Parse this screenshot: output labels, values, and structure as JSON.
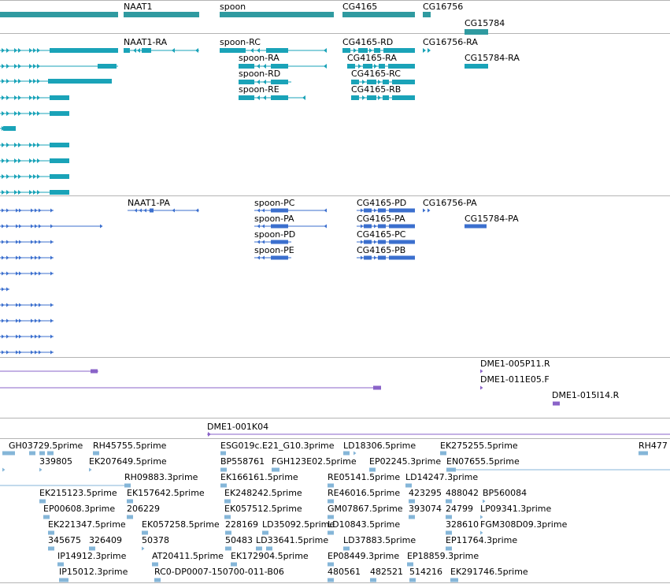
{
  "colors": {
    "gene": "#2f9aa0",
    "transcript": "#1aa3b8",
    "protein": "#3b6fce",
    "clone": "#8a63c8",
    "cdna": "#85b6d8",
    "separator": "#b4b4b4"
  },
  "genes": [
    "NAAT1",
    "spoon",
    "CG4165",
    "CG16756",
    "CG15784"
  ],
  "transcripts": [
    "NAAT1-RA",
    "spoon-RC",
    "spoon-RA",
    "spoon-RD",
    "spoon-RE",
    "CG4165-RD",
    "CG4165-RA",
    "CG4165-RC",
    "CG4165-RB",
    "CG16756-RA",
    "CG15784-RA"
  ],
  "proteins": [
    "NAAT1-PA",
    "spoon-PC",
    "spoon-PA",
    "spoon-PD",
    "spoon-PE",
    "CG4165-PD",
    "CG4165-PA",
    "CG4165-PC",
    "CG4165-PB",
    "CG16756-PA",
    "CG15784-PA"
  ],
  "clones": [
    "DME1-005P11.R",
    "DME1-011E05.F",
    "DME1-015I14.R"
  ],
  "assembly": [
    "DME1-001K04"
  ],
  "cdna": [
    "GH03729.5prime",
    "RH45755.5prime",
    "ESG019c.E21_G10.3prime",
    "LD18306.5prime",
    "EK275255.5prime",
    "RH477",
    "339805",
    "EK207649.5prime",
    "BP558761",
    "FGH123E02.5prime",
    "EP02245.3prime",
    "EN07655.5prime",
    "RH09883.3prime",
    "EK166161.5prime",
    "RE05141.5prime",
    "LD14247.3prime",
    "EK215123.5prime",
    "EK157642.5prime",
    "EK248242.5prime",
    "RE46016.5prime",
    "423295",
    "488042",
    "BP560084",
    "EP00608.3prime",
    "206229",
    "EK057512.5prime",
    "GM07867.5prime",
    "393074",
    "24799",
    "LP09341.3prime",
    "EK221347.5prime",
    "EK057258.5prime",
    "228169",
    "LD35092.5prime",
    "LD10843.5prime",
    "328610",
    "FGM308D09.3prime",
    "345675",
    "326409",
    "50378",
    "50483",
    "LD33641.5prime",
    "LD37883.5prime",
    "EP11764.3prime",
    "IP14912.3prime",
    "AT20411.5prime",
    "EK172904.5prime",
    "EP08449.3prime",
    "EP18859.3prime",
    "IP15012.3prime",
    "RC0-DP0007-150700-011-B06",
    "480561",
    "482521",
    "514216",
    "EK291746.5prime"
  ]
}
